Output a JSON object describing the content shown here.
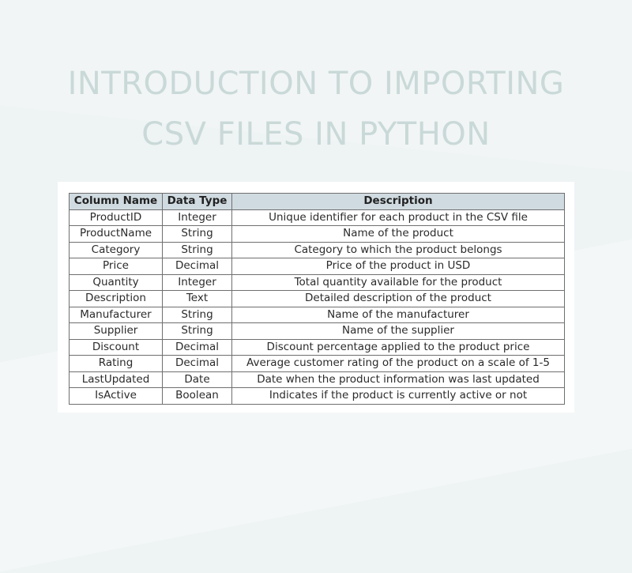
{
  "title_line1": "INTRODUCTION TO IMPORTING",
  "title_line2": "CSV FILES IN PYTHON",
  "table": {
    "headers": [
      "Column Name",
      "Data Type",
      "Description"
    ],
    "rows": [
      [
        "ProductID",
        "Integer",
        "Unique identifier for each product in the CSV file"
      ],
      [
        "ProductName",
        "String",
        "Name of the product"
      ],
      [
        "Category",
        "String",
        "Category to which the product belongs"
      ],
      [
        "Price",
        "Decimal",
        "Price of the product in USD"
      ],
      [
        "Quantity",
        "Integer",
        "Total quantity available for the product"
      ],
      [
        "Description",
        "Text",
        "Detailed description of the product"
      ],
      [
        "Manufacturer",
        "String",
        "Name of the manufacturer"
      ],
      [
        "Supplier",
        "String",
        "Name of the supplier"
      ],
      [
        "Discount",
        "Decimal",
        "Discount percentage applied to the product price"
      ],
      [
        "Rating",
        "Decimal",
        "Average customer rating of the product on a scale of 1-5"
      ],
      [
        "LastUpdated",
        "Date",
        "Date when the product information was last updated"
      ],
      [
        "IsActive",
        "Boolean",
        "Indicates if the product is currently active or not"
      ]
    ]
  },
  "colors": {
    "background": "#eef3f4",
    "title": "#c9d9d7",
    "header_fill": "#d0dbe1",
    "border": "#6f6f6f"
  }
}
